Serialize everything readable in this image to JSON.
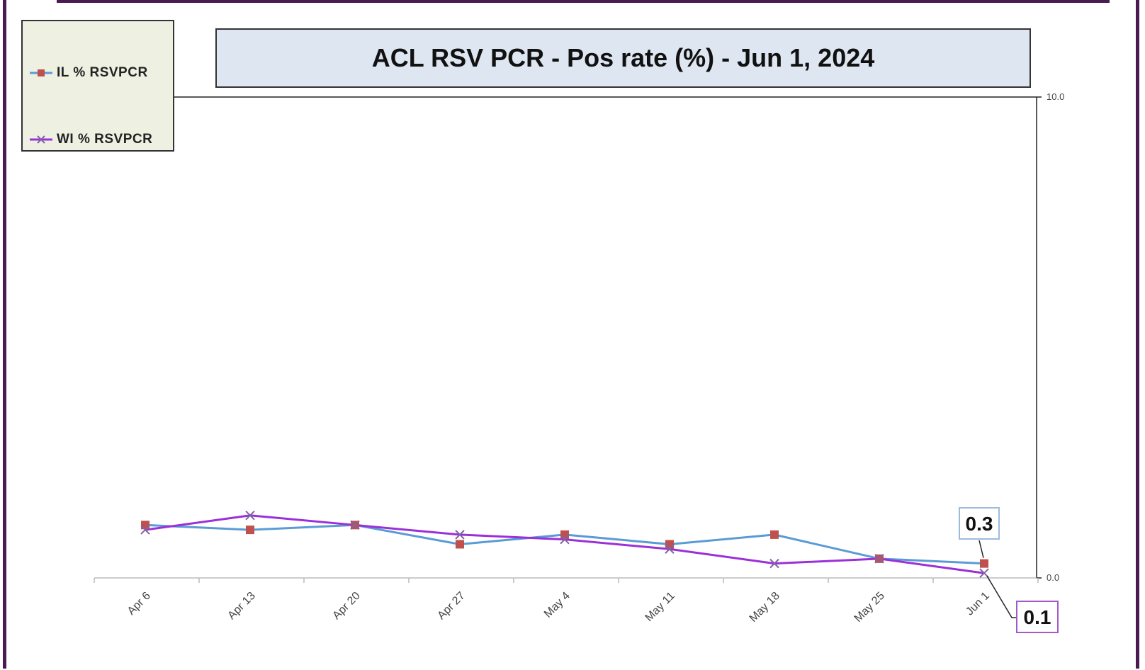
{
  "chart_data": {
    "type": "line",
    "title": "ACL RSV PCR - Pos rate (%) -  Jun 1, 2024",
    "categories": [
      "Apr 6",
      "Apr 13",
      "Apr 20",
      "Apr 27",
      "May 4",
      "May 11",
      "May 18",
      "May 25",
      "Jun 1"
    ],
    "series": [
      {
        "name": "IL % RSVPCR",
        "color": "#5b9bd5",
        "marker": "square",
        "marker_color": "#c0504d",
        "values": [
          1.1,
          1.0,
          1.1,
          0.7,
          0.9,
          0.7,
          0.9,
          0.4,
          0.3
        ]
      },
      {
        "name": "WI % RSVPCR",
        "color": "#9b30d9",
        "marker": "x",
        "marker_color": "#8064a2",
        "values": [
          1.0,
          1.3,
          1.1,
          0.9,
          0.8,
          0.6,
          0.3,
          0.4,
          0.1
        ]
      }
    ],
    "y_ticks": [
      "10.0",
      "0.0"
    ],
    "ylim": [
      0,
      10
    ],
    "y_axis_side": "right",
    "legend_position": "top-left",
    "grid": false,
    "annotations": [
      {
        "series": "IL % RSVPCR",
        "category": "Jun 1",
        "label": "0.3"
      },
      {
        "series": "WI % RSVPCR",
        "category": "Jun 1",
        "label": "0.1"
      }
    ]
  }
}
